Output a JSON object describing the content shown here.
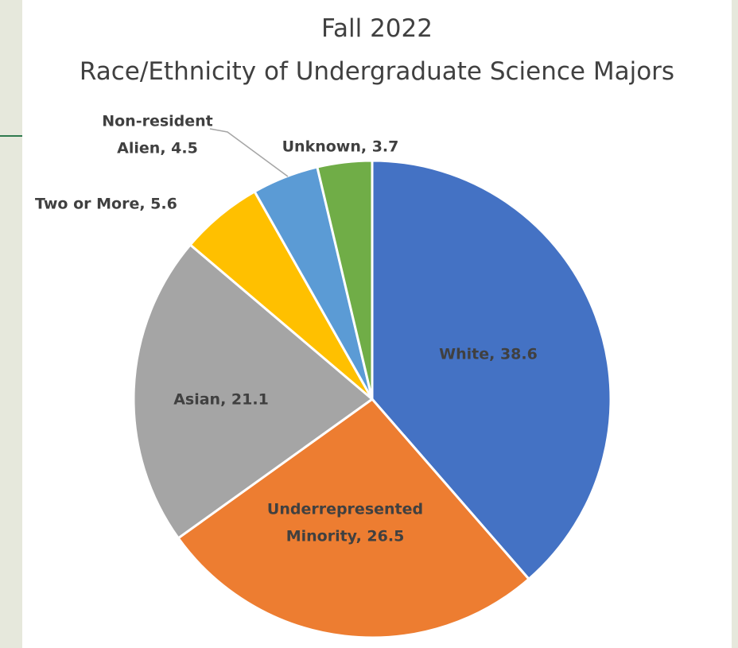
{
  "chart_data": {
    "type": "pie",
    "title": "Fall 2022",
    "subtitle": "Race/Ethnicity of Undergraduate Science Majors",
    "slices": [
      {
        "label_lines": [
          "White, 38.6"
        ],
        "value": 38.6,
        "color": "#4472c4"
      },
      {
        "label_lines": [
          "Underrepresented",
          "Minority, 26.5"
        ],
        "value": 26.5,
        "color": "#ed7d31"
      },
      {
        "label_lines": [
          "Asian, 21.1"
        ],
        "value": 21.1,
        "color": "#a5a5a5"
      },
      {
        "label_lines": [
          "Two or More, 5.6"
        ],
        "value": 5.6,
        "color": "#ffc000"
      },
      {
        "label_lines": [
          "Non-resident",
          "Alien, 4.5"
        ],
        "value": 4.5,
        "color": "#5b9bd5"
      },
      {
        "label_lines": [
          "Unknown, 3.7"
        ],
        "value": 3.7,
        "color": "#70ad47"
      }
    ],
    "label_color": "#404040",
    "legend": "none"
  },
  "colors": {
    "background": "#e6e8dc",
    "panel": "#ffffff",
    "accent": "#2f7a4e"
  }
}
